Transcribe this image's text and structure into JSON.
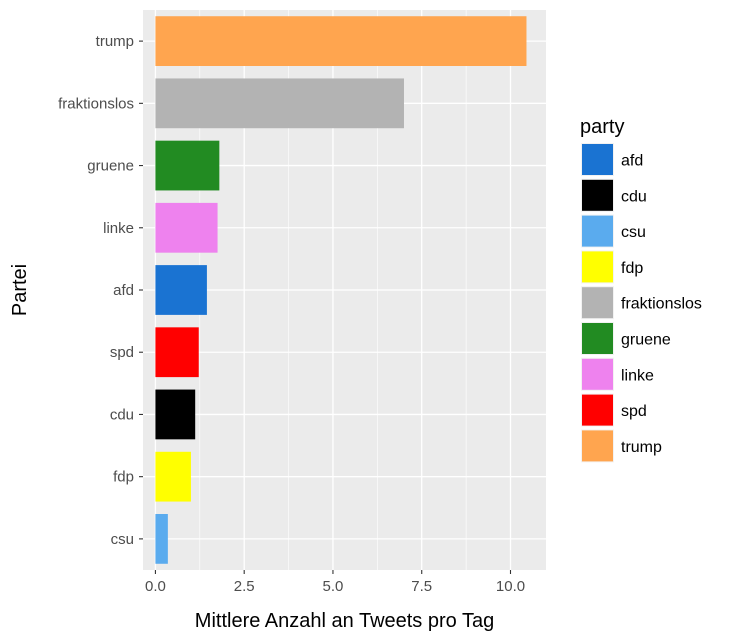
{
  "chart_data": {
    "type": "bar",
    "orientation": "horizontal",
    "categories": [
      "csu",
      "fdp",
      "cdu",
      "spd",
      "afd",
      "linke",
      "gruene",
      "fraktionslos",
      "trump"
    ],
    "values": [
      0.35,
      1.0,
      1.12,
      1.22,
      1.45,
      1.75,
      1.8,
      7.0,
      10.45
    ],
    "colors": [
      "#5aabee",
      "#ffff00",
      "#000000",
      "#ff0000",
      "#1a73d2",
      "#ee82ee",
      "#228b22",
      "#b3b3b3",
      "#ffa54f"
    ],
    "xlabel": "Mittlere Anzahl an Tweets pro Tag",
    "ylabel": "Partei",
    "xlim": [
      -0.35,
      11.0
    ],
    "xticks": [
      0,
      2.5,
      5,
      7.5,
      10
    ],
    "xtick_labels": [
      "0.0",
      "2.5",
      "5.0",
      "7.5",
      "10.0"
    ],
    "grid": true,
    "legend": {
      "title": "party",
      "position": "right",
      "entries": [
        {
          "label": "afd",
          "color": "#1a73d2"
        },
        {
          "label": "cdu",
          "color": "#000000"
        },
        {
          "label": "csu",
          "color": "#5aabee"
        },
        {
          "label": "fdp",
          "color": "#ffff00"
        },
        {
          "label": "fraktionslos",
          "color": "#b3b3b3"
        },
        {
          "label": "gruene",
          "color": "#228b22"
        },
        {
          "label": "linke",
          "color": "#ee82ee"
        },
        {
          "label": "spd",
          "color": "#ff0000"
        },
        {
          "label": "trump",
          "color": "#ffa54f"
        }
      ]
    }
  }
}
